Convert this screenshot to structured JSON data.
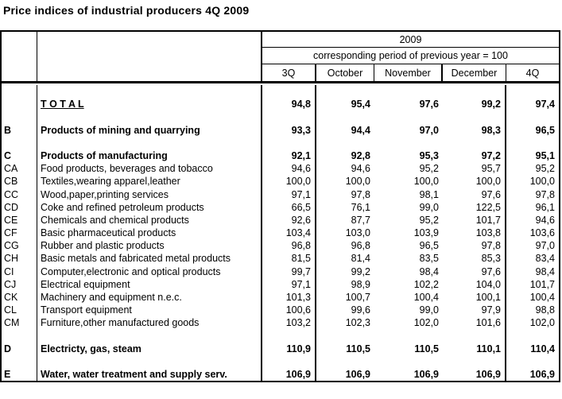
{
  "title": "Price indices of industrial producers 4Q 2009",
  "table": {
    "year": "2009",
    "subtitle": "corresponding period of previous year = 100",
    "columns": [
      "3Q",
      "October",
      "November",
      "December",
      "4Q"
    ],
    "rows": [
      {
        "code": "",
        "name": "T O T A L",
        "values": [
          "94,8",
          "95,4",
          "97,6",
          "99,2",
          "97,4"
        ],
        "style": "total",
        "gap_before": true
      },
      {
        "code": "B",
        "name": "Products of mining and quarrying",
        "values": [
          "93,3",
          "94,4",
          "97,0",
          "98,3",
          "96,5"
        ],
        "style": "section",
        "gap_before": true
      },
      {
        "code": "C",
        "name": "Products of manufacturing",
        "values": [
          "92,1",
          "92,8",
          "95,3",
          "97,2",
          "95,1"
        ],
        "style": "section",
        "gap_before": true
      },
      {
        "code": "CA",
        "name": "Food products, beverages and tobacco",
        "values": [
          "94,6",
          "94,6",
          "95,2",
          "95,7",
          "95,2"
        ],
        "style": "normal",
        "gap_before": false
      },
      {
        "code": "CB",
        "name": "Textiles,wearing apparel,leather",
        "values": [
          "100,0",
          "100,0",
          "100,0",
          "100,0",
          "100,0"
        ],
        "style": "normal",
        "gap_before": false
      },
      {
        "code": "CC",
        "name": "Wood,paper,printing services",
        "values": [
          "97,1",
          "97,8",
          "98,1",
          "97,6",
          "97,8"
        ],
        "style": "normal",
        "gap_before": false
      },
      {
        "code": "CD",
        "name": "Coke and refined petroleum products",
        "values": [
          "66,5",
          "76,1",
          "99,0",
          "122,5",
          "96,1"
        ],
        "style": "normal",
        "gap_before": false
      },
      {
        "code": "CE",
        "name": "Chemicals and chemical products",
        "values": [
          "92,6",
          "87,7",
          "95,2",
          "101,7",
          "94,6"
        ],
        "style": "normal",
        "gap_before": false
      },
      {
        "code": "CF",
        "name": "Basic pharmaceutical products",
        "values": [
          "103,4",
          "103,0",
          "103,9",
          "103,8",
          "103,6"
        ],
        "style": "normal",
        "gap_before": false
      },
      {
        "code": "CG",
        "name": "Rubber and plastic products",
        "values": [
          "96,8",
          "96,8",
          "96,5",
          "97,8",
          "97,0"
        ],
        "style": "normal",
        "gap_before": false
      },
      {
        "code": "CH",
        "name": "Basic metals and fabricated metal products",
        "values": [
          "81,5",
          "81,4",
          "83,5",
          "85,3",
          "83,4"
        ],
        "style": "normal",
        "gap_before": false
      },
      {
        "code": "CI",
        "name": "Computer,electronic and optical products",
        "values": [
          "99,7",
          "99,2",
          "98,4",
          "97,6",
          "98,4"
        ],
        "style": "normal",
        "gap_before": false
      },
      {
        "code": "CJ",
        "name": "Electrical equipment",
        "values": [
          "97,1",
          "98,9",
          "102,2",
          "104,0",
          "101,7"
        ],
        "style": "normal",
        "gap_before": false
      },
      {
        "code": "CK",
        "name": "Machinery and equipment n.e.c.",
        "values": [
          "101,3",
          "100,7",
          "100,4",
          "100,1",
          "100,4"
        ],
        "style": "normal",
        "gap_before": false
      },
      {
        "code": "CL",
        "name": "Transport equipment",
        "values": [
          "100,6",
          "99,6",
          "99,0",
          "97,9",
          "98,8"
        ],
        "style": "normal",
        "gap_before": false
      },
      {
        "code": "CM",
        "name": "Furniture,other manufactured goods",
        "values": [
          "103,2",
          "102,3",
          "102,0",
          "101,6",
          "102,0"
        ],
        "style": "normal",
        "gap_before": false
      },
      {
        "code": "D",
        "name": "Electricty, gas, steam",
        "values": [
          "110,9",
          "110,5",
          "110,5",
          "110,1",
          "110,4"
        ],
        "style": "section",
        "gap_before": true
      },
      {
        "code": "E",
        "name": "Water, water treatment and supply serv.",
        "values": [
          "106,9",
          "106,9",
          "106,9",
          "106,9",
          "106,9"
        ],
        "style": "section",
        "gap_before": true
      }
    ]
  }
}
